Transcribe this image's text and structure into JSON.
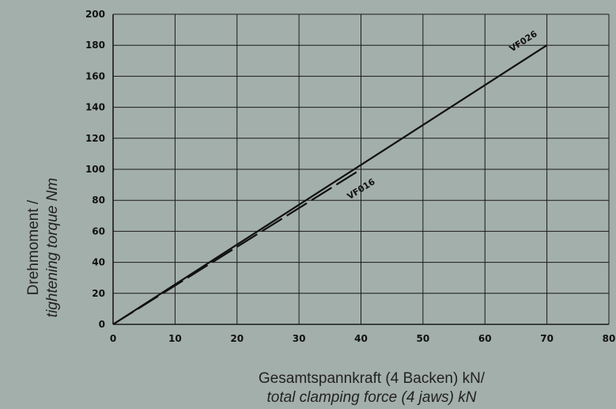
{
  "chart_data": {
    "type": "line",
    "title": "",
    "xlabel": [
      "Gesamtspannkraft (4 Backen) kN/",
      "total clamping force (4 jaws) kN"
    ],
    "ylabel": [
      "Drehmoment /",
      "tightening torque Nm"
    ],
    "xlim": [
      0,
      80
    ],
    "ylim": [
      0,
      200
    ],
    "xticks": [
      0,
      10,
      20,
      30,
      40,
      50,
      60,
      70,
      80
    ],
    "yticks": [
      0,
      20,
      40,
      60,
      80,
      100,
      120,
      140,
      160,
      180,
      200
    ],
    "grid": true,
    "legend": "none",
    "series": [
      {
        "name": "VF026",
        "style": "solid",
        "x": [
          0,
          70
        ],
        "y": [
          0,
          180
        ]
      },
      {
        "name": "VF016",
        "style": "dashed",
        "x": [
          0,
          40
        ],
        "y": [
          0,
          100
        ]
      }
    ],
    "colors": {
      "background": "#a3afab",
      "grid": "#1a1a1a",
      "line": "#111111"
    }
  }
}
